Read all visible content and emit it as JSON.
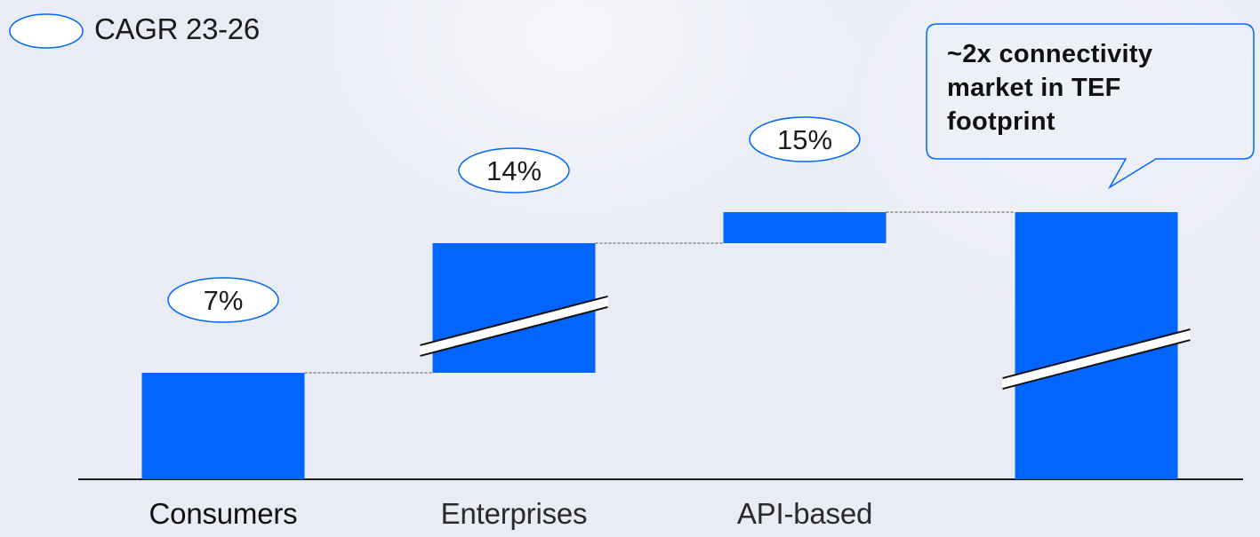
{
  "legend": {
    "label": "CAGR 23-26"
  },
  "callout": {
    "text": "~2x connectivity market in TEF footprint"
  },
  "colors": {
    "bar": "#0066ff",
    "axis": "#1a1a1a",
    "bubble_fill": "#ffffff",
    "bubble_stroke": "#0066ff",
    "connector": "#555555"
  },
  "chart_data": {
    "type": "bar",
    "subtype": "waterfall",
    "categories": [
      "Consumers",
      "Enterprises",
      "API-based",
      ""
    ],
    "series": [
      {
        "base": [
          0,
          120,
          266,
          0
        ],
        "values": [
          120,
          146,
          35,
          301
        ]
      }
    ],
    "cagr_labels": [
      "7%",
      "14%",
      "15%",
      ""
    ],
    "axis_breaks": [
      false,
      true,
      false,
      true
    ],
    "grid": false,
    "legend_position": "top-left"
  }
}
